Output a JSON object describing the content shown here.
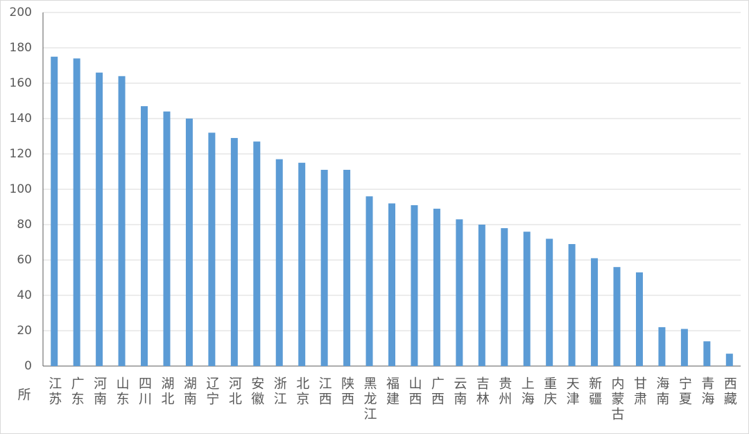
{
  "chart_data": {
    "type": "bar",
    "corner_text": "所",
    "categories": [
      "江苏",
      "广东",
      "河南",
      "山东",
      "四川",
      "湖北",
      "湖南",
      "辽宁",
      "河北",
      "安徽",
      "浙江",
      "北京",
      "江西",
      "陕西",
      "黑龙江",
      "福建",
      "山西",
      "广西",
      "云南",
      "吉林",
      "贵州",
      "上海",
      "重庆",
      "天津",
      "新疆",
      "内蒙古",
      "甘肃",
      "海南",
      "宁夏",
      "青海",
      "西藏"
    ],
    "values": [
      175,
      174,
      166,
      164,
      147,
      144,
      140,
      132,
      129,
      127,
      117,
      115,
      111,
      111,
      96,
      92,
      91,
      89,
      83,
      80,
      78,
      76,
      72,
      69,
      61,
      56,
      53,
      22,
      21,
      14,
      7
    ],
    "color": "#5b9bd5",
    "ylim": [
      0,
      200
    ],
    "yticks": [
      0,
      20,
      40,
      60,
      80,
      100,
      120,
      140,
      160,
      180,
      200
    ],
    "grid": true
  }
}
